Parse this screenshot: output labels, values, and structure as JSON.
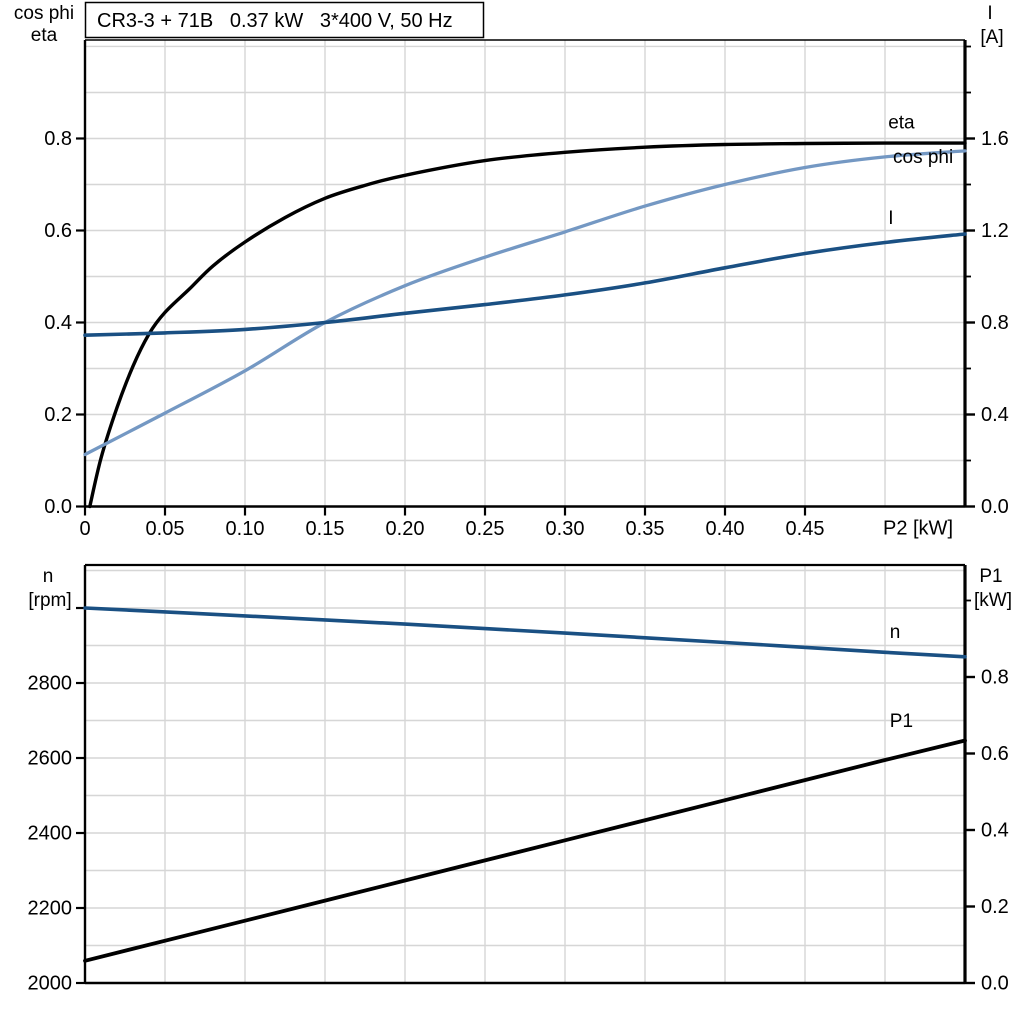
{
  "colors": {
    "black": "#000000",
    "dark_blue": "#1a5083",
    "light_blue": "#7498c3",
    "grid": "#d6d6d6",
    "axis": "#000000",
    "background": "#ffffff"
  },
  "title_box": {
    "text": "CR3-3 + 71B   0.37 kW   3*400 V, 50 Hz"
  },
  "chart_data": [
    {
      "type": "line",
      "title": "CR3-3 + 71B   0.37 kW   3*400 V, 50 Hz",
      "x_axis": {
        "label": "P2 [kW]",
        "range": [
          0,
          0.55
        ],
        "show_tick_labels": true,
        "tick_labels": [
          {
            "v": 0,
            "t": "0"
          },
          {
            "v": 0.05,
            "t": "0.05"
          },
          {
            "v": 0.1,
            "t": "0.10"
          },
          {
            "v": 0.15,
            "t": "0.15"
          },
          {
            "v": 0.2,
            "t": "0.20"
          },
          {
            "v": 0.25,
            "t": "0.25"
          },
          {
            "v": 0.3,
            "t": "0.30"
          },
          {
            "v": 0.35,
            "t": "0.35"
          },
          {
            "v": 0.4,
            "t": "0.40"
          },
          {
            "v": 0.45,
            "t": "0.45"
          }
        ],
        "grid": [
          0.05,
          0.1,
          0.15,
          0.2,
          0.25,
          0.3,
          0.35,
          0.4,
          0.45,
          0.5
        ]
      },
      "y_left": {
        "title_lines": [
          "cos phi",
          "eta"
        ],
        "range": [
          0,
          1.0141
        ],
        "tick_labels": [
          {
            "v": 0,
            "t": "0.0"
          },
          {
            "v": 0.2,
            "t": "0.2"
          },
          {
            "v": 0.4,
            "t": "0.4"
          },
          {
            "v": 0.6,
            "t": "0.6"
          },
          {
            "v": 0.8,
            "t": "0.8"
          }
        ],
        "minor_ticks": [],
        "grid": [
          0.1,
          0.2,
          0.3,
          0.4,
          0.5,
          0.6,
          0.7,
          0.8,
          0.9,
          1.0
        ]
      },
      "y_right": {
        "title_lines": [
          "I",
          "[A]"
        ],
        "range": [
          0,
          2.0283
        ],
        "tick_labels": [
          {
            "v": 0,
            "t": "0.0"
          },
          {
            "v": 0.4,
            "t": "0.4"
          },
          {
            "v": 0.8,
            "t": "0.8"
          },
          {
            "v": 1.2,
            "t": "1.2"
          },
          {
            "v": 1.6,
            "t": "1.6"
          }
        ],
        "minor_ticks": [
          0.2,
          0.6,
          1.0,
          1.4,
          1.8,
          2.0
        ]
      },
      "series": [
        {
          "name": "eta",
          "axis": "left",
          "color": "black",
          "width": 3.4,
          "label": {
            "text": "eta",
            "x": 0.502,
            "v": 0.833
          },
          "points": [
            [
              0.003,
              0.0
            ],
            [
              0.01,
              0.105
            ],
            [
              0.02,
              0.215
            ],
            [
              0.03,
              0.305
            ],
            [
              0.04,
              0.375
            ],
            [
              0.05,
              0.422
            ],
            [
              0.065,
              0.472
            ],
            [
              0.08,
              0.523
            ],
            [
              0.1,
              0.575
            ],
            [
              0.125,
              0.628
            ],
            [
              0.15,
              0.67
            ],
            [
              0.175,
              0.698
            ],
            [
              0.2,
              0.72
            ],
            [
              0.25,
              0.752
            ],
            [
              0.3,
              0.77
            ],
            [
              0.35,
              0.781
            ],
            [
              0.4,
              0.787
            ],
            [
              0.45,
              0.789
            ],
            [
              0.5,
              0.79
            ],
            [
              0.55,
              0.79
            ]
          ]
        },
        {
          "name": "cos phi",
          "axis": "left",
          "color": "light_blue",
          "width": 3.3,
          "label": {
            "text": "cos phi",
            "x": 0.505,
            "v": 0.758
          },
          "points": [
            [
              0,
              0.113
            ],
            [
              0.05,
              0.203
            ],
            [
              0.1,
              0.295
            ],
            [
              0.15,
              0.4
            ],
            [
              0.2,
              0.48
            ],
            [
              0.25,
              0.542
            ],
            [
              0.3,
              0.597
            ],
            [
              0.35,
              0.653
            ],
            [
              0.4,
              0.7
            ],
            [
              0.45,
              0.737
            ],
            [
              0.5,
              0.76
            ],
            [
              0.55,
              0.773
            ]
          ]
        },
        {
          "name": "I",
          "axis": "right",
          "color": "dark_blue",
          "width": 3.6,
          "label": {
            "text": "I",
            "x": 0.502,
            "v": 1.25
          },
          "points": [
            [
              0,
              0.745
            ],
            [
              0.05,
              0.755
            ],
            [
              0.1,
              0.77
            ],
            [
              0.15,
              0.8
            ],
            [
              0.2,
              0.84
            ],
            [
              0.25,
              0.878
            ],
            [
              0.3,
              0.92
            ],
            [
              0.35,
              0.972
            ],
            [
              0.4,
              1.038
            ],
            [
              0.45,
              1.1
            ],
            [
              0.5,
              1.148
            ],
            [
              0.55,
              1.185
            ]
          ]
        }
      ]
    },
    {
      "type": "line",
      "title": "",
      "x_axis": {
        "label": "",
        "range": [
          0,
          0.55
        ],
        "show_tick_labels": false,
        "tick_labels": [],
        "grid": [
          0.05,
          0.1,
          0.15,
          0.2,
          0.25,
          0.3,
          0.35,
          0.4,
          0.45,
          0.5
        ]
      },
      "y_left": {
        "title_lines": [
          "n",
          "[rpm]"
        ],
        "range": [
          2000,
          3114.7
        ],
        "tick_labels": [
          {
            "v": 2000,
            "t": "2000"
          },
          {
            "v": 2200,
            "t": "2200"
          },
          {
            "v": 2400,
            "t": "2400"
          },
          {
            "v": 2600,
            "t": "2600"
          },
          {
            "v": 2800,
            "t": "2800"
          }
        ],
        "minor_ticks": [
          3000
        ],
        "grid": [
          2100,
          2200,
          2300,
          2400,
          2500,
          2600,
          2700,
          2800,
          2900,
          3000,
          3100
        ]
      },
      "y_right": {
        "title_lines": [
          "P1",
          "[kW]"
        ],
        "range": [
          0,
          1.0928
        ],
        "tick_labels": [
          {
            "v": 0,
            "t": "0.0"
          },
          {
            "v": 0.2,
            "t": "0.2"
          },
          {
            "v": 0.4,
            "t": "0.4"
          },
          {
            "v": 0.6,
            "t": "0.6"
          },
          {
            "v": 0.8,
            "t": "0.8"
          }
        ],
        "minor_ticks": [
          1.0
        ]
      },
      "series": [
        {
          "name": "n",
          "axis": "left",
          "color": "dark_blue",
          "width": 3.6,
          "label": {
            "text": "n",
            "x": 0.503,
            "v": 2933
          },
          "points": [
            [
              0,
              3000
            ],
            [
              0.1,
              2979
            ],
            [
              0.2,
              2957
            ],
            [
              0.3,
              2933
            ],
            [
              0.4,
              2908
            ],
            [
              0.5,
              2882
            ],
            [
              0.55,
              2870
            ]
          ]
        },
        {
          "name": "P1",
          "axis": "right",
          "color": "black",
          "width": 3.8,
          "label": {
            "text": "P1",
            "x": 0.503,
            "v": 0.682
          },
          "points": [
            [
              0,
              0.058
            ],
            [
              0.1,
              0.163
            ],
            [
              0.2,
              0.268
            ],
            [
              0.3,
              0.373
            ],
            [
              0.4,
              0.478
            ],
            [
              0.5,
              0.583
            ],
            [
              0.55,
              0.634
            ]
          ]
        }
      ]
    }
  ]
}
